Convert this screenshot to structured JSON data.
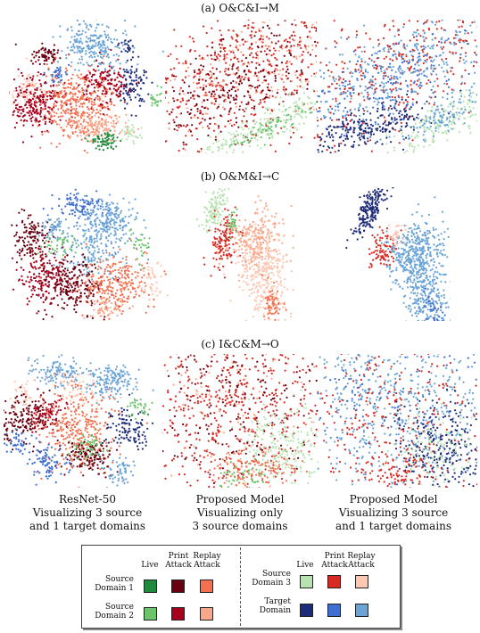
{
  "rows": [
    {
      "title": "(a) O&C&I→M"
    },
    {
      "title": "(b) O&M&I→C"
    },
    {
      "title": "(c) I&C&M→O"
    }
  ],
  "captions": [
    {
      "line1": "ResNet-50",
      "line2": "Visualizing 3 source",
      "line3": "and 1 target domains"
    },
    {
      "line1": "Proposed Model",
      "line2": "Visualizing only",
      "line3": "3 source domains"
    },
    {
      "line1": "Proposed Model",
      "line2": "Visualizing 3 source",
      "line3": "and 1 target domains"
    }
  ],
  "legend": {
    "col_live": "Live",
    "col_print_1": "Print",
    "col_print_2": "Attack",
    "col_replay_1": "Replay",
    "col_replay_2": "Attack",
    "src1_1": "Source",
    "src1_2": "Domain 1",
    "src2_1": "Source",
    "src2_2": "Domain 2",
    "src3_1": "Source",
    "src3_2": "Domain 3",
    "tgt_1": "Target",
    "tgt_2": "Domain"
  },
  "colors": {
    "src1_live": "#1f8a3e",
    "src1_print": "#6b0010",
    "src1_replay": "#f4704e",
    "src2_live": "#6cc46b",
    "src2_print": "#a8001c",
    "src2_replay": "#fba88a",
    "src3_live": "#b7e3b0",
    "src3_print": "#d62a23",
    "src3_replay": "#fdc7b2",
    "tgt_live": "#1c2b7a",
    "tgt_print": "#3f6fd0",
    "tgt_replay": "#6aa3d6"
  }
}
